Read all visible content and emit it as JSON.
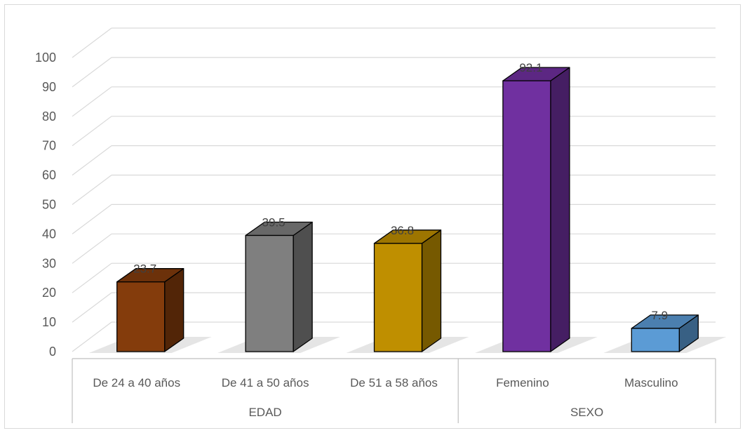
{
  "chart_data": {
    "type": "bar",
    "style": "3d-column",
    "groups": [
      {
        "label": "EDAD",
        "categories": [
          "De 24 a 40 años",
          "De 41 a 50 años",
          "De 51 a 58 años"
        ]
      },
      {
        "label": "SEXO",
        "categories": [
          "Femenino",
          "Masculino"
        ]
      }
    ],
    "categories": [
      "De 24 a 40 años",
      "De 41 a 50 años",
      "De 51 a 58 años",
      "Femenino",
      "Masculino"
    ],
    "values": [
      23.7,
      39.5,
      36.8,
      92.1,
      7.9
    ],
    "data_labels": [
      "23.7",
      "39.5",
      "36.8",
      "92.1",
      "7.9"
    ],
    "colors": [
      "#843c0c",
      "#7f7f7f",
      "#bf8f00",
      "#7030a0",
      "#5b9bd5"
    ],
    "yticks": [
      "0",
      "10",
      "20",
      "30",
      "40",
      "50",
      "60",
      "70",
      "80",
      "90",
      "100"
    ],
    "ylim": [
      0,
      100
    ],
    "grid": true,
    "legend": "none",
    "title": "",
    "xlabel": "",
    "ylabel": ""
  }
}
